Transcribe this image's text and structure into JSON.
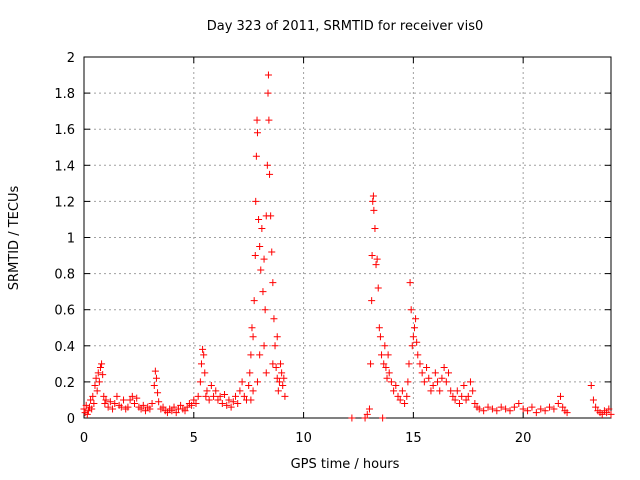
{
  "chart_data": {
    "type": "scatter",
    "title": "Day 323 of 2011, SRMTID for receiver vis0",
    "xlabel": "GPS time / hours",
    "ylabel": "SRMTID / TECUs",
    "xlim": [
      0,
      24
    ],
    "ylim": [
      0,
      2
    ],
    "xticks": [
      0,
      5,
      10,
      15,
      20
    ],
    "xtick_labels": [
      "0",
      "5",
      "10",
      "15",
      "20"
    ],
    "yticks": [
      0,
      0.2,
      0.4,
      0.6,
      0.8,
      1,
      1.2,
      1.4,
      1.6,
      1.8,
      2
    ],
    "ytick_labels": [
      "0",
      "0.2",
      "0.4",
      "0.6",
      "0.8",
      "1",
      "1.2",
      "1.4",
      "1.6",
      "1.8",
      "2"
    ],
    "grid": true,
    "marker": "+",
    "color": "#ff0000",
    "series": [
      {
        "name": "vis0",
        "points": [
          [
            0.0,
            0.05
          ],
          [
            0.05,
            0.03
          ],
          [
            0.1,
            0.07
          ],
          [
            0.15,
            0.02
          ],
          [
            0.2,
            0.04
          ],
          [
            0.25,
            0.06
          ],
          [
            0.3,
            0.1
          ],
          [
            0.35,
            0.05
          ],
          [
            0.4,
            0.12
          ],
          [
            0.45,
            0.08
          ],
          [
            0.5,
            0.18
          ],
          [
            0.55,
            0.22
          ],
          [
            0.6,
            0.15
          ],
          [
            0.65,
            0.25
          ],
          [
            0.7,
            0.2
          ],
          [
            0.75,
            0.28
          ],
          [
            0.8,
            0.3
          ],
          [
            0.85,
            0.24
          ],
          [
            0.9,
            0.12
          ],
          [
            0.95,
            0.08
          ],
          [
            1.0,
            0.1
          ],
          [
            1.1,
            0.06
          ],
          [
            1.2,
            0.09
          ],
          [
            1.3,
            0.05
          ],
          [
            1.4,
            0.08
          ],
          [
            1.5,
            0.12
          ],
          [
            1.6,
            0.07
          ],
          [
            1.7,
            0.06
          ],
          [
            1.8,
            0.1
          ],
          [
            1.9,
            0.05
          ],
          [
            2.0,
            0.06
          ],
          [
            2.1,
            0.1
          ],
          [
            2.2,
            0.12
          ],
          [
            2.3,
            0.08
          ],
          [
            2.4,
            0.11
          ],
          [
            2.5,
            0.06
          ],
          [
            2.6,
            0.05
          ],
          [
            2.7,
            0.07
          ],
          [
            2.8,
            0.04
          ],
          [
            2.9,
            0.06
          ],
          [
            3.0,
            0.05
          ],
          [
            3.1,
            0.08
          ],
          [
            3.2,
            0.18
          ],
          [
            3.25,
            0.26
          ],
          [
            3.3,
            0.22
          ],
          [
            3.35,
            0.14
          ],
          [
            3.4,
            0.09
          ],
          [
            3.5,
            0.05
          ],
          [
            3.6,
            0.06
          ],
          [
            3.7,
            0.04
          ],
          [
            3.8,
            0.03
          ],
          [
            3.9,
            0.05
          ],
          [
            4.0,
            0.04
          ],
          [
            4.1,
            0.06
          ],
          [
            4.2,
            0.03
          ],
          [
            4.3,
            0.05
          ],
          [
            4.4,
            0.07
          ],
          [
            4.5,
            0.05
          ],
          [
            4.6,
            0.04
          ],
          [
            4.7,
            0.06
          ],
          [
            4.8,
            0.08
          ],
          [
            4.9,
            0.07
          ],
          [
            5.0,
            0.1
          ],
          [
            5.1,
            0.08
          ],
          [
            5.2,
            0.12
          ],
          [
            5.3,
            0.2
          ],
          [
            5.35,
            0.3
          ],
          [
            5.4,
            0.38
          ],
          [
            5.45,
            0.35
          ],
          [
            5.5,
            0.25
          ],
          [
            5.55,
            0.12
          ],
          [
            5.6,
            0.15
          ],
          [
            5.7,
            0.1
          ],
          [
            5.8,
            0.18
          ],
          [
            5.9,
            0.12
          ],
          [
            6.0,
            0.15
          ],
          [
            6.1,
            0.1
          ],
          [
            6.2,
            0.12
          ],
          [
            6.3,
            0.08
          ],
          [
            6.4,
            0.13
          ],
          [
            6.5,
            0.07
          ],
          [
            6.6,
            0.1
          ],
          [
            6.7,
            0.06
          ],
          [
            6.8,
            0.09
          ],
          [
            6.9,
            0.12
          ],
          [
            7.0,
            0.08
          ],
          [
            7.1,
            0.15
          ],
          [
            7.2,
            0.2
          ],
          [
            7.3,
            0.12
          ],
          [
            7.4,
            0.1
          ],
          [
            7.5,
            0.18
          ],
          [
            7.55,
            0.25
          ],
          [
            7.6,
            0.35
          ],
          [
            7.65,
            0.5
          ],
          [
            7.7,
            0.45
          ],
          [
            7.75,
            0.65
          ],
          [
            7.8,
            0.9
          ],
          [
            7.82,
            1.2
          ],
          [
            7.85,
            1.45
          ],
          [
            7.88,
            1.65
          ],
          [
            7.9,
            1.58
          ],
          [
            7.95,
            1.1
          ],
          [
            8.0,
            0.95
          ],
          [
            8.05,
            0.82
          ],
          [
            8.1,
            1.05
          ],
          [
            8.15,
            0.7
          ],
          [
            8.2,
            0.88
          ],
          [
            8.25,
            0.6
          ],
          [
            8.3,
            1.12
          ],
          [
            8.35,
            1.4
          ],
          [
            8.38,
            1.8
          ],
          [
            8.4,
            1.9
          ],
          [
            8.42,
            1.65
          ],
          [
            8.45,
            1.35
          ],
          [
            8.5,
            1.12
          ],
          [
            8.55,
            0.92
          ],
          [
            8.6,
            0.75
          ],
          [
            8.65,
            0.55
          ],
          [
            8.7,
            0.4
          ],
          [
            8.75,
            0.28
          ],
          [
            8.8,
            0.22
          ],
          [
            8.85,
            0.15
          ],
          [
            8.9,
            0.2
          ],
          [
            8.95,
            0.3
          ],
          [
            9.0,
            0.25
          ],
          [
            9.05,
            0.18
          ],
          [
            9.1,
            0.22
          ],
          [
            9.15,
            0.12
          ],
          [
            7.6,
            0.1
          ],
          [
            7.7,
            0.15
          ],
          [
            7.9,
            0.2
          ],
          [
            8.0,
            0.35
          ],
          [
            8.2,
            0.4
          ],
          [
            8.3,
            0.25
          ],
          [
            8.6,
            0.3
          ],
          [
            8.8,
            0.45
          ],
          [
            12.2,
            0.0
          ],
          [
            12.8,
            0.0
          ],
          [
            12.9,
            0.02
          ],
          [
            13.0,
            0.05
          ],
          [
            13.05,
            0.3
          ],
          [
            13.1,
            0.65
          ],
          [
            13.12,
            0.9
          ],
          [
            13.15,
            1.2
          ],
          [
            13.18,
            1.23
          ],
          [
            13.2,
            1.15
          ],
          [
            13.25,
            1.05
          ],
          [
            13.3,
            0.85
          ],
          [
            13.35,
            0.88
          ],
          [
            13.4,
            0.72
          ],
          [
            13.45,
            0.5
          ],
          [
            13.5,
            0.45
          ],
          [
            13.55,
            0.35
          ],
          [
            13.6,
            0.0
          ],
          [
            13.65,
            0.3
          ],
          [
            13.7,
            0.4
          ],
          [
            13.75,
            0.28
          ],
          [
            13.8,
            0.22
          ],
          [
            13.85,
            0.35
          ],
          [
            13.9,
            0.25
          ],
          [
            14.0,
            0.2
          ],
          [
            14.1,
            0.15
          ],
          [
            14.2,
            0.18
          ],
          [
            14.3,
            0.12
          ],
          [
            14.4,
            0.1
          ],
          [
            14.5,
            0.15
          ],
          [
            14.6,
            0.08
          ],
          [
            14.7,
            0.12
          ],
          [
            14.75,
            0.2
          ],
          [
            14.8,
            0.3
          ],
          [
            14.85,
            0.75
          ],
          [
            14.9,
            0.6
          ],
          [
            14.95,
            0.4
          ],
          [
            15.0,
            0.45
          ],
          [
            15.05,
            0.5
          ],
          [
            15.1,
            0.55
          ],
          [
            15.15,
            0.42
          ],
          [
            15.2,
            0.35
          ],
          [
            15.3,
            0.3
          ],
          [
            15.4,
            0.25
          ],
          [
            15.5,
            0.2
          ],
          [
            15.6,
            0.28
          ],
          [
            15.7,
            0.22
          ],
          [
            15.8,
            0.15
          ],
          [
            15.9,
            0.18
          ],
          [
            16.0,
            0.25
          ],
          [
            16.1,
            0.2
          ],
          [
            16.2,
            0.15
          ],
          [
            16.3,
            0.22
          ],
          [
            16.4,
            0.28
          ],
          [
            16.5,
            0.2
          ],
          [
            16.6,
            0.25
          ],
          [
            16.7,
            0.15
          ],
          [
            16.8,
            0.12
          ],
          [
            16.9,
            0.1
          ],
          [
            17.0,
            0.15
          ],
          [
            17.1,
            0.08
          ],
          [
            17.2,
            0.12
          ],
          [
            17.3,
            0.18
          ],
          [
            17.4,
            0.1
          ],
          [
            17.5,
            0.12
          ],
          [
            17.6,
            0.2
          ],
          [
            17.7,
            0.15
          ],
          [
            17.8,
            0.08
          ],
          [
            17.9,
            0.06
          ],
          [
            18.0,
            0.05
          ],
          [
            18.2,
            0.04
          ],
          [
            18.4,
            0.06
          ],
          [
            18.6,
            0.05
          ],
          [
            18.8,
            0.04
          ],
          [
            19.0,
            0.06
          ],
          [
            19.2,
            0.05
          ],
          [
            19.4,
            0.04
          ],
          [
            19.6,
            0.06
          ],
          [
            19.8,
            0.08
          ],
          [
            20.0,
            0.05
          ],
          [
            20.2,
            0.04
          ],
          [
            20.4,
            0.06
          ],
          [
            20.6,
            0.03
          ],
          [
            20.8,
            0.05
          ],
          [
            21.0,
            0.04
          ],
          [
            21.2,
            0.06
          ],
          [
            21.4,
            0.05
          ],
          [
            21.6,
            0.08
          ],
          [
            21.7,
            0.12
          ],
          [
            21.8,
            0.06
          ],
          [
            21.9,
            0.04
          ],
          [
            22.0,
            0.03
          ],
          [
            23.1,
            0.18
          ],
          [
            23.2,
            0.1
          ],
          [
            23.3,
            0.06
          ],
          [
            23.4,
            0.04
          ],
          [
            23.5,
            0.03
          ],
          [
            23.6,
            0.02
          ],
          [
            23.7,
            0.04
          ],
          [
            23.8,
            0.03
          ],
          [
            23.9,
            0.05
          ],
          [
            24.0,
            0.02
          ]
        ]
      }
    ]
  }
}
